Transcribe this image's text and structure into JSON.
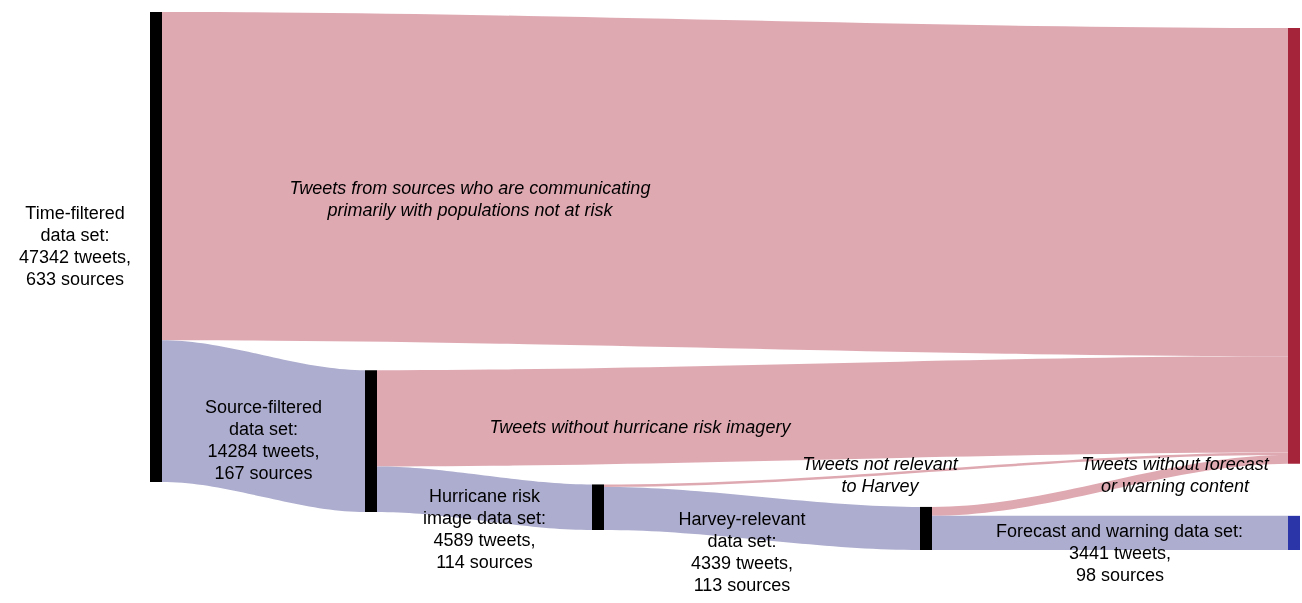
{
  "chart_data": {
    "type": "other",
    "categories": [
      "Time-filtered",
      "Source-filtered",
      "Hurricane risk",
      "Harvey-relevant",
      "Forecast and warning"
    ],
    "value_labels": [
      "data set: 47342 tweets, 633 sources",
      "data set: 14284 tweets, 167 sources",
      "image data set: 4589 tweets, 114 sources",
      "data set: 4339 tweets, 113 sources",
      "data set: 3441 tweets, 98 sources"
    ],
    "values": [
      47342,
      14284,
      4589,
      4339,
      3441
    ],
    "series": [
      {
        "color": "#adadcf",
        "values": [
          null,
          null,
          null,
          null,
          null
        ]
      },
      {
        "color": "#dfa9b2",
        "values": [
          null,
          null,
          null,
          null,
          null
        ]
      },
      {
        "color": "#a5243a",
        "values": [
          null,
          null,
          null,
          null,
          null
        ]
      },
      {
        "color": "#000000",
        "values": [
          null,
          null,
          null,
          null,
          null
        ]
      },
      {
        "color": "#2b35a8",
        "values": [
          null,
          null,
          null,
          null,
          null
        ]
      }
    ],
    "annotations": [
      "Tweets from sources who are communicating primarily with populations not at risk",
      "Tweets without hurricane risk imagery",
      "Tweets not relevant to Harvey",
      "Tweets without forecast or warning content"
    ]
  }
}
